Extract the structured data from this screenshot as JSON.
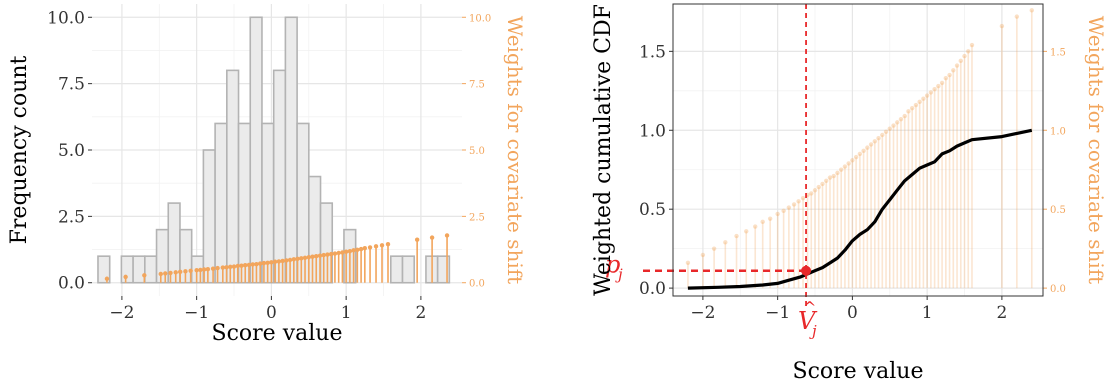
{
  "colors": {
    "weights": "#f2a55c",
    "bar_fill": "#ebebeb",
    "bar_stroke": "#b3b3b3",
    "cdf_line": "#000000",
    "marker": "#e8282a"
  },
  "chart_data": [
    {
      "type": "bar",
      "xlabel": "Score value",
      "ylabel": "Frequency count",
      "y2label": "Weights for covariate shift",
      "xlim": [
        -2.4,
        2.55
      ],
      "ylim": [
        -0.5,
        10.5
      ],
      "x_ticks": [
        -2,
        -1,
        0,
        1,
        2
      ],
      "x_tick_labels": [
        "−2",
        "−1",
        "0",
        "1",
        "2"
      ],
      "y_ticks": [
        0,
        2.5,
        5,
        7.5,
        10
      ],
      "y_tick_labels": [
        "0.0",
        "2.5",
        "5.0",
        "7.5",
        "10.0"
      ],
      "y2_ticks": [
        0,
        2.5,
        5,
        7.5,
        10
      ],
      "y2_tick_labels": [
        "0.0",
        "2.5",
        "5.0",
        "7.5",
        "10.0"
      ],
      "grid": true,
      "histogram": {
        "bin_width": 0.1567,
        "bin_start": -2.32,
        "counts": [
          1,
          0,
          1,
          1,
          1,
          2,
          3,
          2,
          1,
          5,
          6,
          8,
          6,
          10,
          6,
          8,
          10,
          6,
          4,
          3,
          0,
          2,
          0,
          0,
          0,
          1,
          1,
          0,
          1,
          1
        ]
      },
      "weights": {
        "x": [
          -2.2,
          -1.95,
          -1.7,
          -1.48,
          -1.42,
          -1.35,
          -1.28,
          -1.22,
          -1.15,
          -1.08,
          -1.0,
          -0.95,
          -0.9,
          -0.85,
          -0.78,
          -0.72,
          -0.65,
          -0.6,
          -0.55,
          -0.5,
          -0.45,
          -0.4,
          -0.35,
          -0.3,
          -0.25,
          -0.2,
          -0.15,
          -0.1,
          -0.05,
          0.0,
          0.05,
          0.1,
          0.15,
          0.2,
          0.25,
          0.3,
          0.35,
          0.4,
          0.45,
          0.5,
          0.55,
          0.6,
          0.65,
          0.7,
          0.75,
          0.8,
          0.85,
          0.9,
          0.95,
          1.0,
          1.05,
          1.1,
          1.15,
          1.2,
          1.25,
          1.32,
          1.4,
          1.48,
          1.56,
          1.95,
          2.15,
          2.35
        ],
        "y": [
          0.15,
          0.22,
          0.28,
          0.33,
          0.35,
          0.37,
          0.39,
          0.41,
          0.43,
          0.45,
          0.47,
          0.48,
          0.5,
          0.51,
          0.53,
          0.55,
          0.57,
          0.58,
          0.6,
          0.61,
          0.63,
          0.64,
          0.66,
          0.67,
          0.69,
          0.7,
          0.72,
          0.74,
          0.75,
          0.77,
          0.79,
          0.8,
          0.82,
          0.84,
          0.86,
          0.88,
          0.9,
          0.92,
          0.94,
          0.96,
          0.98,
          1.0,
          1.02,
          1.04,
          1.06,
          1.08,
          1.1,
          1.12,
          1.14,
          1.17,
          1.19,
          1.22,
          1.24,
          1.27,
          1.3,
          1.33,
          1.37,
          1.41,
          1.45,
          1.62,
          1.7,
          1.78
        ]
      }
    },
    {
      "type": "line",
      "xlabel": "Score value",
      "ylabel": "Weighted cumulative CDF",
      "y2label": "Weights for covariate shift",
      "xlim": [
        -2.4,
        2.55
      ],
      "ylim": [
        -0.05,
        1.8
      ],
      "x_ticks": [
        -2,
        -1,
        0,
        1,
        2
      ],
      "x_tick_labels": [
        "−2",
        "−1",
        "0",
        "1",
        "2"
      ],
      "y_ticks": [
        0,
        0.5,
        1.0,
        1.5
      ],
      "y_tick_labels": [
        "0.0",
        "0.5",
        "1.0",
        "1.5"
      ],
      "y2_ticks": [
        0,
        0.5,
        1.0,
        1.5
      ],
      "y2_tick_labels": [
        "0.0",
        "0.5",
        "1.0",
        "1.5"
      ],
      "grid": true,
      "cdf": {
        "x": [
          -2.2,
          -1.8,
          -1.5,
          -1.2,
          -1.0,
          -0.85,
          -0.7,
          -0.6,
          -0.5,
          -0.4,
          -0.3,
          -0.2,
          -0.1,
          0.0,
          0.1,
          0.2,
          0.3,
          0.4,
          0.5,
          0.6,
          0.7,
          0.8,
          0.9,
          1.0,
          1.1,
          1.2,
          1.3,
          1.4,
          1.5,
          1.6,
          2.0,
          2.4
        ],
        "y": [
          0.0,
          0.005,
          0.01,
          0.02,
          0.03,
          0.05,
          0.07,
          0.09,
          0.11,
          0.13,
          0.16,
          0.19,
          0.24,
          0.3,
          0.34,
          0.37,
          0.42,
          0.5,
          0.56,
          0.62,
          0.68,
          0.72,
          0.76,
          0.78,
          0.8,
          0.85,
          0.87,
          0.9,
          0.92,
          0.94,
          0.96,
          1.0
        ]
      },
      "weights": {
        "x": [
          -2.2,
          -2.0,
          -1.85,
          -1.7,
          -1.55,
          -1.42,
          -1.3,
          -1.2,
          -1.1,
          -1.0,
          -0.92,
          -0.85,
          -0.78,
          -0.72,
          -0.66,
          -0.6,
          -0.55,
          -0.5,
          -0.45,
          -0.4,
          -0.35,
          -0.3,
          -0.25,
          -0.2,
          -0.15,
          -0.1,
          -0.05,
          0.0,
          0.05,
          0.1,
          0.15,
          0.2,
          0.25,
          0.3,
          0.35,
          0.4,
          0.45,
          0.5,
          0.55,
          0.6,
          0.65,
          0.7,
          0.75,
          0.8,
          0.85,
          0.9,
          0.95,
          1.0,
          1.05,
          1.1,
          1.15,
          1.2,
          1.25,
          1.3,
          1.35,
          1.4,
          1.45,
          1.5,
          1.55,
          1.6,
          2.0,
          2.2,
          2.4
        ],
        "y": [
          0.16,
          0.21,
          0.25,
          0.29,
          0.33,
          0.36,
          0.39,
          0.42,
          0.44,
          0.47,
          0.49,
          0.51,
          0.53,
          0.55,
          0.57,
          0.59,
          0.6,
          0.62,
          0.64,
          0.66,
          0.68,
          0.7,
          0.71,
          0.73,
          0.75,
          0.77,
          0.79,
          0.81,
          0.83,
          0.85,
          0.87,
          0.89,
          0.91,
          0.93,
          0.95,
          0.97,
          0.99,
          1.01,
          1.03,
          1.05,
          1.07,
          1.09,
          1.12,
          1.14,
          1.16,
          1.18,
          1.2,
          1.22,
          1.24,
          1.26,
          1.28,
          1.3,
          1.33,
          1.35,
          1.38,
          1.41,
          1.44,
          1.47,
          1.5,
          1.54,
          1.66,
          1.72,
          1.76
        ]
      },
      "annotation": {
        "point_x": -0.62,
        "point_y": 0.11,
        "p_label": "p",
        "p_sub": "j",
        "v_label": "V",
        "v_sub": "j",
        "v_hat": "^"
      }
    }
  ]
}
